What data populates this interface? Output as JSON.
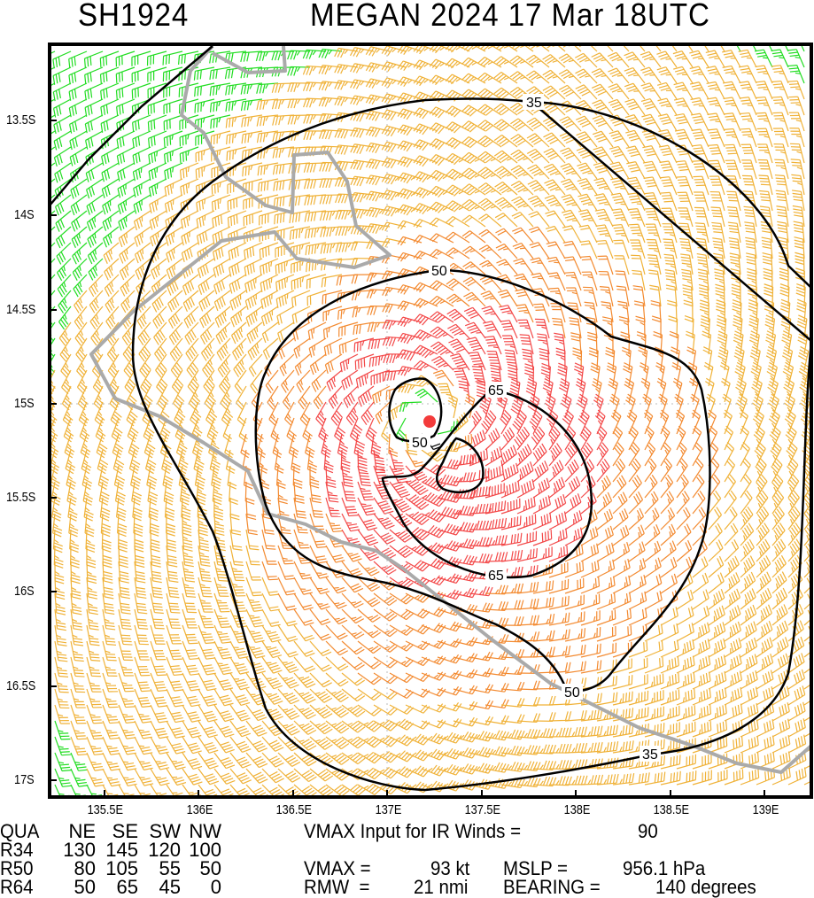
{
  "header": {
    "storm_id": "SH1924",
    "title": "MEGAN 2024 17 Mar 18UTC"
  },
  "map": {
    "lat_labels": [
      "13.5S",
      "14S",
      "14.5S",
      "15S",
      "15.5S",
      "16S",
      "16.5S",
      "17S"
    ],
    "lon_labels": [
      "135.5E",
      "136E",
      "136.5E",
      "137E",
      "137.5E",
      "138E",
      "138.5E",
      "139E"
    ],
    "contour_labels": {
      "c35": "35",
      "c50": "50",
      "c65": "65"
    },
    "center": {
      "lon": 137.22,
      "lat": -15.09
    },
    "colors": {
      "lt34": "#22dd22",
      "kt34": "#f0b238",
      "kt50": "#f38a30",
      "kt64": "#f34848",
      "weak": "#000000",
      "coast": "#aaaaaa",
      "storm": "#f33b3b"
    }
  },
  "table": {
    "header": [
      "QUA",
      "NE",
      "SE",
      "SW",
      "NW"
    ],
    "rows": [
      {
        "label": "R34",
        "values": [
          "130",
          "145",
          "120",
          "100"
        ]
      },
      {
        "label": "R50",
        "values": [
          "80",
          "105",
          "55",
          "50"
        ]
      },
      {
        "label": "R64",
        "values": [
          "50",
          "65",
          "45",
          "0"
        ]
      }
    ]
  },
  "info": {
    "vmax_input_label": "VMAX Input for IR Winds =",
    "vmax_input_value": "90",
    "vmax_label": "VMAX =",
    "vmax_value": "93 kt",
    "mslp_label": "MSLP =",
    "mslp_value": "956.1 hPa",
    "rmw_label": "RMW  =",
    "rmw_value": "21 nmi",
    "bearing_label": "BEARING =",
    "bearing_value": "140 degrees"
  }
}
